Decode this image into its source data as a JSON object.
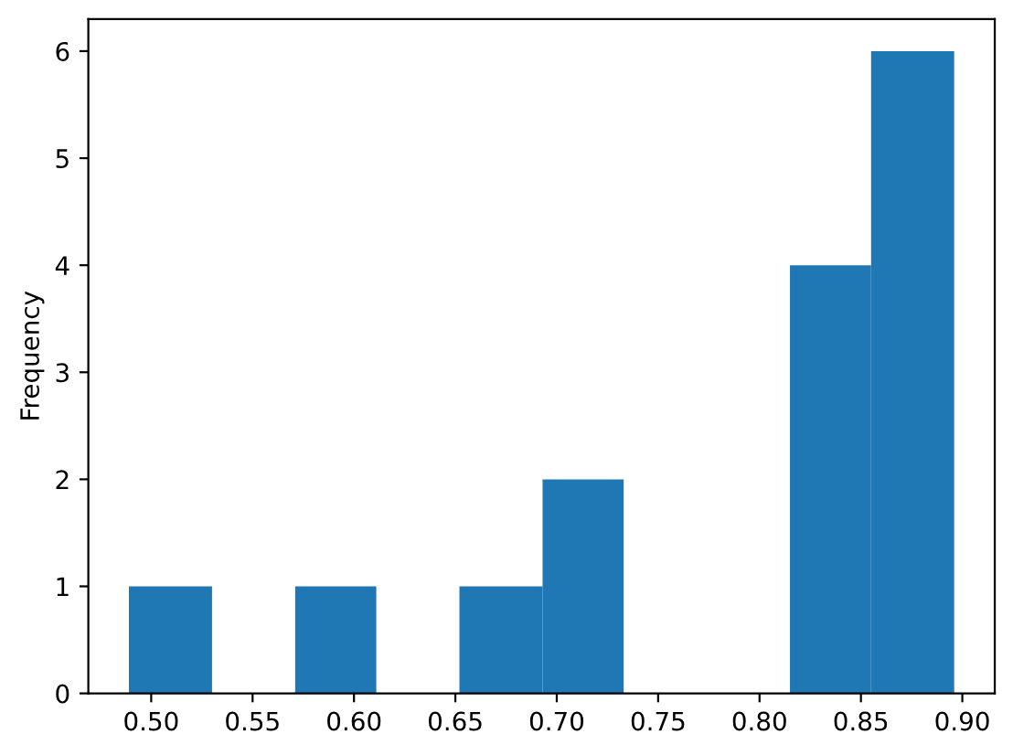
{
  "chart_data": {
    "type": "histogram",
    "ylabel": "Frequency",
    "color": "#1f77b4",
    "bins": [
      0.489,
      0.53,
      0.571,
      0.611,
      0.652,
      0.693,
      0.733,
      0.815,
      0.855,
      0.896
    ],
    "values": [
      1,
      0,
      1,
      0,
      1,
      2,
      0,
      4,
      6
    ],
    "xlim": [
      0.469,
      0.916
    ],
    "ylim": [
      0,
      6.3
    ],
    "xticks": [
      {
        "value": 0.5,
        "label": "0.50"
      },
      {
        "value": 0.55,
        "label": "0.55"
      },
      {
        "value": 0.6,
        "label": "0.60"
      },
      {
        "value": 0.65,
        "label": "0.65"
      },
      {
        "value": 0.7,
        "label": "0.70"
      },
      {
        "value": 0.75,
        "label": "0.75"
      },
      {
        "value": 0.8,
        "label": "0.80"
      },
      {
        "value": 0.85,
        "label": "0.85"
      },
      {
        "value": 0.9,
        "label": "0.90"
      }
    ],
    "yticks": [
      0,
      1,
      2,
      3,
      4,
      5,
      6
    ],
    "grid": false,
    "legend": false
  }
}
